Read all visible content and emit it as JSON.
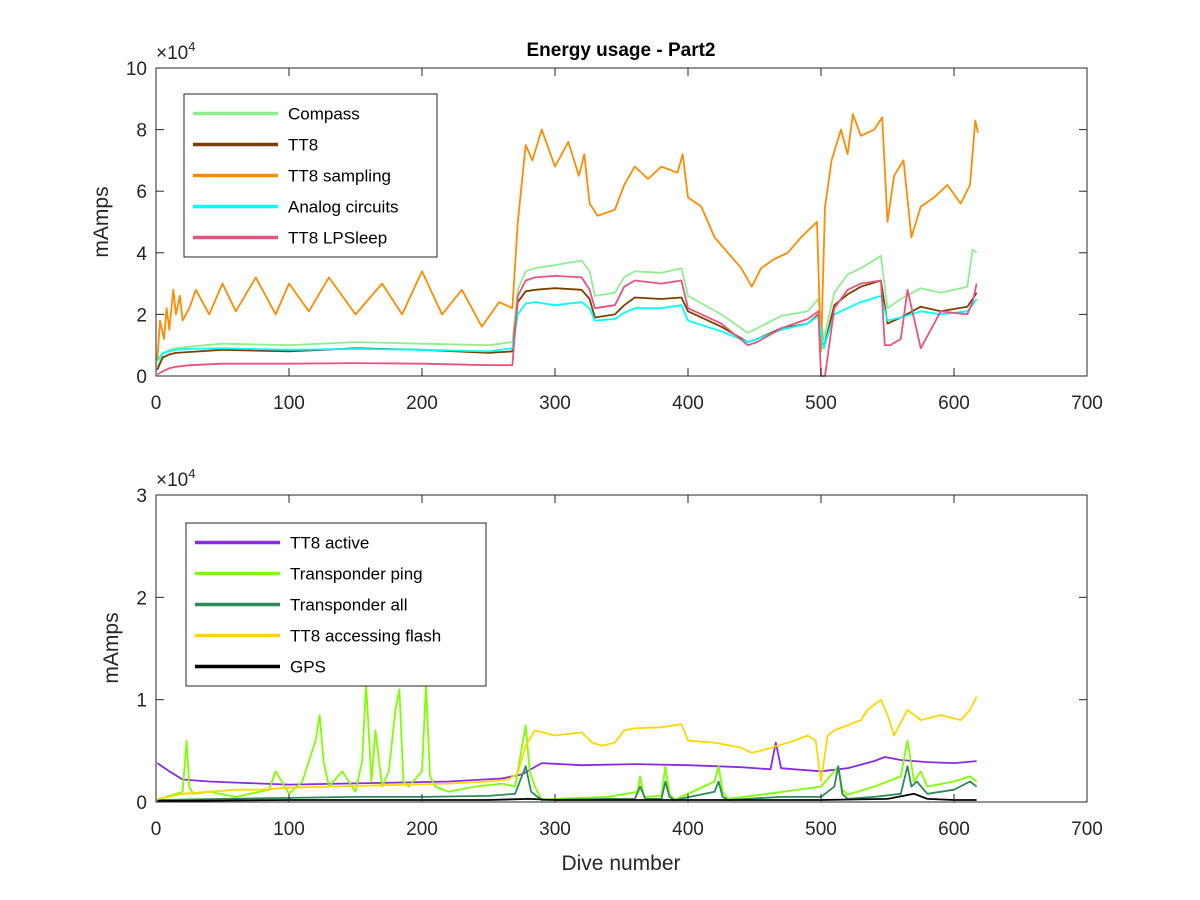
{
  "figure": {
    "title": "Energy usage - Part2"
  },
  "chart_data": [
    {
      "type": "line",
      "title": "Energy usage - Part2",
      "xlabel": "",
      "ylabel": "mAmps",
      "xlim": [
        0,
        700
      ],
      "ylim": [
        0,
        100000
      ],
      "xticks": [
        0,
        100,
        200,
        300,
        400,
        500,
        600,
        700
      ],
      "yticks": [
        0,
        20000,
        40000,
        60000,
        80000,
        100000
      ],
      "ytick_labels": [
        "0",
        "2",
        "4",
        "6",
        "8",
        "10"
      ],
      "exponent_label": "×10",
      "exponent_power": "4",
      "grid": false,
      "legend_position": "top-left",
      "series": [
        {
          "name": "Compass",
          "color": "#90EE90",
          "x": [
            1,
            5,
            10,
            15,
            25,
            50,
            100,
            150,
            200,
            250,
            268,
            272,
            278,
            285,
            300,
            320,
            326,
            330,
            345,
            352,
            360,
            380,
            395,
            400,
            425,
            445,
            452,
            470,
            490,
            498,
            502,
            510,
            520,
            530,
            545,
            550,
            560,
            575,
            590,
            610,
            614,
            617
          ],
          "y": [
            3000,
            7000,
            8500,
            9000,
            9500,
            10500,
            10000,
            11000,
            10500,
            10000,
            11000,
            28000,
            34000,
            35000,
            36000,
            37500,
            34000,
            26000,
            27000,
            32000,
            34000,
            33500,
            35000,
            26000,
            20000,
            14000,
            15500,
            19500,
            21000,
            25000,
            12000,
            27000,
            33000,
            35000,
            39000,
            22000,
            25000,
            28500,
            27000,
            29000,
            41000,
            40000
          ]
        },
        {
          "name": "TT8",
          "color": "#7B3F00",
          "x": [
            1,
            5,
            10,
            15,
            25,
            50,
            100,
            150,
            200,
            250,
            268,
            272,
            278,
            285,
            300,
            320,
            326,
            330,
            345,
            352,
            360,
            380,
            395,
            400,
            425,
            445,
            452,
            470,
            490,
            498,
            502,
            510,
            520,
            530,
            545,
            550,
            560,
            575,
            590,
            610,
            614,
            617
          ],
          "y": [
            2000,
            6000,
            7000,
            7500,
            7800,
            8500,
            8000,
            9000,
            8500,
            7500,
            8000,
            24000,
            27500,
            28000,
            28500,
            28000,
            25000,
            19000,
            20000,
            23000,
            25500,
            25000,
            25500,
            21000,
            16000,
            11000,
            12000,
            15500,
            17000,
            20000,
            9000,
            23000,
            26500,
            29000,
            31000,
            17000,
            19000,
            22500,
            21000,
            22500,
            25000,
            27000
          ]
        },
        {
          "name": "TT8 sampling",
          "color": "#FF8C00",
          "x": [
            1,
            3,
            6,
            8,
            10,
            13,
            15,
            18,
            20,
            25,
            30,
            40,
            50,
            60,
            75,
            90,
            100,
            115,
            130,
            150,
            170,
            185,
            200,
            215,
            230,
            245,
            258,
            268,
            272,
            278,
            283,
            290,
            300,
            310,
            318,
            322,
            326,
            332,
            345,
            352,
            360,
            370,
            380,
            392,
            396,
            400,
            410,
            420,
            430,
            440,
            448,
            455,
            465,
            475,
            485,
            492,
            497,
            500,
            503,
            508,
            515,
            520,
            524,
            530,
            540,
            546,
            550,
            555,
            562,
            568,
            575,
            585,
            595,
            605,
            612,
            616,
            618
          ],
          "y": [
            5000,
            18000,
            12000,
            22000,
            15000,
            28000,
            20000,
            26000,
            18000,
            22000,
            28000,
            20000,
            30000,
            21000,
            32000,
            20000,
            30000,
            21000,
            32000,
            20000,
            30000,
            20000,
            34000,
            20000,
            28000,
            16000,
            24000,
            22000,
            50000,
            75000,
            70000,
            80000,
            68000,
            76000,
            65000,
            72000,
            56000,
            52000,
            54000,
            62000,
            68000,
            64000,
            68000,
            66000,
            72000,
            58000,
            55000,
            45000,
            40000,
            35000,
            29000,
            35000,
            38000,
            40000,
            45000,
            48000,
            50000,
            8000,
            55000,
            70000,
            80000,
            72000,
            85000,
            78000,
            80000,
            84000,
            50000,
            65000,
            70000,
            45000,
            55000,
            58000,
            62000,
            56000,
            62000,
            83000,
            79000
          ]
        },
        {
          "name": "Analog circuits",
          "color": "#00FFFF",
          "x": [
            1,
            5,
            10,
            15,
            25,
            50,
            100,
            150,
            200,
            250,
            268,
            272,
            278,
            285,
            300,
            320,
            326,
            330,
            345,
            352,
            360,
            380,
            395,
            400,
            425,
            445,
            452,
            470,
            490,
            498,
            502,
            510,
            520,
            530,
            545,
            550,
            560,
            575,
            590,
            610,
            614,
            617
          ],
          "y": [
            5000,
            7500,
            8000,
            8500,
            8800,
            9000,
            8500,
            8800,
            8500,
            8000,
            9000,
            20000,
            23500,
            24000,
            23000,
            24000,
            22000,
            18000,
            18500,
            20500,
            22000,
            22000,
            23000,
            18000,
            14500,
            11000,
            12000,
            15000,
            17000,
            19500,
            9000,
            20000,
            22000,
            24000,
            26000,
            18000,
            19000,
            21000,
            20000,
            21000,
            23000,
            25000
          ]
        },
        {
          "name": "TT8 LPSleep",
          "color": "#E75480",
          "x": [
            1,
            5,
            10,
            15,
            25,
            50,
            100,
            150,
            200,
            250,
            268,
            272,
            278,
            285,
            300,
            320,
            326,
            330,
            345,
            352,
            360,
            380,
            395,
            400,
            425,
            445,
            452,
            470,
            490,
            498,
            500,
            503,
            510,
            520,
            530,
            545,
            548,
            552,
            560,
            565,
            575,
            590,
            610,
            614,
            617
          ],
          "y": [
            500,
            1500,
            2500,
            3000,
            3500,
            4000,
            4000,
            4200,
            4000,
            3500,
            3500,
            26000,
            31000,
            32000,
            32500,
            32000,
            28000,
            22000,
            23000,
            29000,
            31000,
            30000,
            31000,
            22000,
            17000,
            10000,
            11000,
            15500,
            18500,
            21000,
            0,
            0,
            22000,
            28000,
            30000,
            31000,
            10000,
            10000,
            12000,
            28000,
            9000,
            21000,
            20000,
            24000,
            30000
          ]
        }
      ]
    },
    {
      "type": "line",
      "title": "",
      "xlabel": "Dive number",
      "ylabel": "mAmps",
      "xlim": [
        0,
        700
      ],
      "ylim": [
        0,
        30000
      ],
      "xticks": [
        0,
        100,
        200,
        300,
        400,
        500,
        600,
        700
      ],
      "yticks": [
        0,
        10000,
        20000,
        30000
      ],
      "ytick_labels": [
        "0",
        "1",
        "2",
        "3"
      ],
      "exponent_label": "×10",
      "exponent_power": "4",
      "grid": false,
      "legend_position": "top-left",
      "series": [
        {
          "name": "TT8 active",
          "color": "#8A2BE2",
          "x": [
            1,
            10,
            20,
            40,
            60,
            80,
            100,
            140,
            180,
            220,
            260,
            275,
            290,
            320,
            360,
            400,
            440,
            462,
            466,
            470,
            480,
            500,
            520,
            540,
            548,
            560,
            580,
            600,
            617
          ],
          "y": [
            3800,
            3000,
            2200,
            2000,
            1900,
            1800,
            1700,
            1800,
            1900,
            2000,
            2300,
            2700,
            3800,
            3600,
            3700,
            3600,
            3400,
            3200,
            5800,
            3300,
            3200,
            3000,
            3300,
            4000,
            4400,
            4100,
            3900,
            3800,
            4000
          ]
        },
        {
          "name": "Transponder ping",
          "color": "#7FFF00",
          "x": [
            1,
            10,
            20,
            23,
            25,
            28,
            40,
            60,
            85,
            90,
            100,
            110,
            120,
            123,
            126,
            130,
            140,
            150,
            155,
            158,
            162,
            165,
            170,
            175,
            180,
            183,
            186,
            190,
            200,
            203,
            206,
            210,
            220,
            240,
            260,
            270,
            278,
            281,
            285,
            290,
            300,
            340,
            362,
            364,
            367,
            380,
            383,
            386,
            390,
            420,
            423,
            426,
            430,
            460,
            500,
            510,
            513,
            516,
            520,
            540,
            560,
            565,
            570,
            575,
            580,
            600,
            612,
            617
          ],
          "y": [
            200,
            600,
            1000,
            6000,
            1500,
            800,
            1000,
            500,
            1200,
            3000,
            800,
            2000,
            6000,
            8500,
            4000,
            1500,
            3000,
            1000,
            4000,
            11500,
            2000,
            7000,
            1500,
            3000,
            9000,
            11000,
            2000,
            1500,
            3000,
            11500,
            2500,
            1500,
            1000,
            1500,
            1800,
            1500,
            7500,
            3000,
            1500,
            200,
            300,
            500,
            1000,
            2500,
            500,
            600,
            3500,
            800,
            200,
            2000,
            3500,
            1000,
            300,
            800,
            1500,
            3000,
            3500,
            1200,
            700,
            1500,
            2500,
            6000,
            2000,
            3000,
            1500,
            2000,
            2500,
            2000
          ]
        },
        {
          "name": "Transponder all",
          "color": "#2E8B57",
          "x": [
            1,
            50,
            100,
            150,
            200,
            250,
            270,
            278,
            282,
            290,
            340,
            360,
            364,
            368,
            380,
            383,
            386,
            390,
            420,
            423,
            426,
            430,
            470,
            500,
            510,
            513,
            516,
            520,
            540,
            560,
            565,
            568,
            572,
            580,
            600,
            612,
            617
          ],
          "y": [
            200,
            300,
            400,
            500,
            500,
            600,
            800,
            3500,
            1000,
            200,
            300,
            300,
            1500,
            300,
            300,
            2000,
            500,
            200,
            1000,
            2000,
            500,
            200,
            500,
            500,
            1500,
            3500,
            800,
            300,
            500,
            800,
            3500,
            1500,
            2000,
            800,
            1200,
            2000,
            1500
          ]
        },
        {
          "name": "TT8 accessing flash",
          "color": "#FFD700",
          "x": [
            1,
            10,
            20,
            40,
            60,
            80,
            100,
            130,
            160,
            190,
            220,
            250,
            265,
            272,
            278,
            285,
            300,
            320,
            328,
            335,
            345,
            352,
            360,
            380,
            395,
            400,
            420,
            440,
            448,
            460,
            470,
            480,
            490,
            496,
            500,
            505,
            510,
            520,
            530,
            535,
            545,
            550,
            555,
            565,
            575,
            590,
            605,
            612,
            617
          ],
          "y": [
            300,
            500,
            800,
            1000,
            1200,
            1200,
            1400,
            1500,
            1600,
            1700,
            1800,
            2000,
            2200,
            2800,
            5500,
            7000,
            6500,
            6800,
            5800,
            5500,
            5800,
            7000,
            7200,
            7300,
            7600,
            6000,
            5800,
            5300,
            4800,
            5200,
            5600,
            6000,
            6500,
            6000,
            2000,
            6500,
            7000,
            7500,
            8000,
            9000,
            10000,
            8500,
            6500,
            9000,
            8000,
            8500,
            8000,
            9000,
            10300
          ]
        },
        {
          "name": "GPS",
          "color": "#000000",
          "x": [
            1,
            50,
            100,
            150,
            200,
            250,
            280,
            300,
            350,
            400,
            450,
            500,
            550,
            570,
            580,
            600,
            617
          ],
          "y": [
            100,
            150,
            200,
            200,
            200,
            200,
            300,
            200,
            200,
            200,
            200,
            200,
            300,
            800,
            300,
            200,
            200
          ]
        }
      ]
    }
  ]
}
